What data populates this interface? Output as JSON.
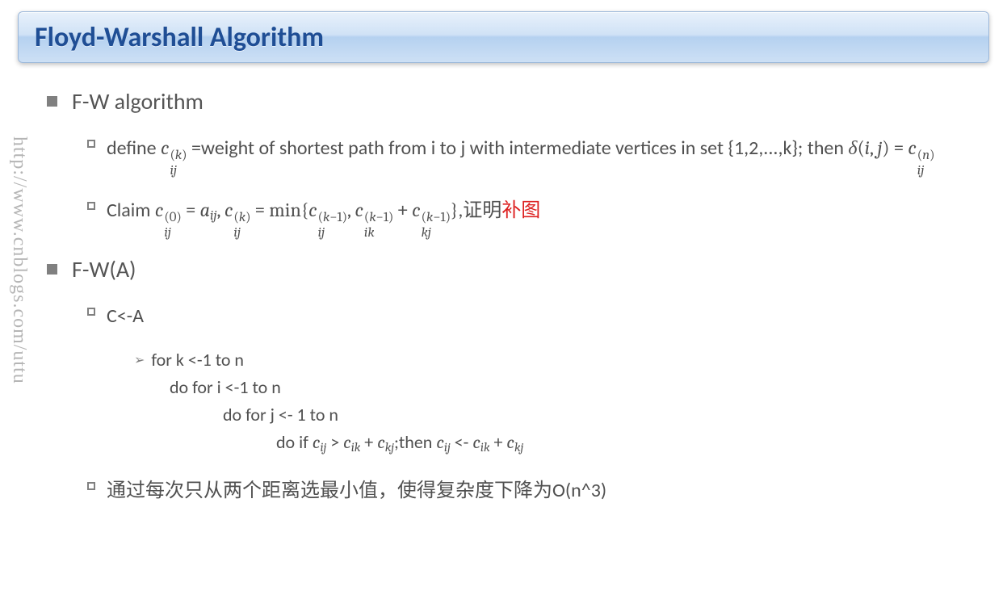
{
  "title": "Floyd-Warshall Algorithm",
  "watermark": "http://www.cnblogs.com/uttu",
  "section1": {
    "heading": "F-W algorithm",
    "bullets": {
      "define_prefix": "define ",
      "define_mid": "=weight of shortest path from i to j with intermediate vertices in set {1,2,...,k}; then ",
      "claim_prefix": "Claim ",
      "claim_tail_plain": ",证明",
      "claim_tail_red": "补图"
    }
  },
  "section2": {
    "heading": "F-W(A)",
    "sub1": "C<-A",
    "code": {
      "l1": "for k <-1 to n",
      "l2": "do for i <-1 to n",
      "l3": "do for j <- 1 to n",
      "l4_a": "do if ",
      "l4_b": ";then "
    },
    "sub2": "通过每次只从两个距离选最小值，使得复杂度下降为O(n^3)"
  },
  "colors": {
    "title_text": "#1f4e95",
    "body_text": "#505050",
    "bullet_gray": "#808080",
    "red": "#d22"
  },
  "fontsizes": {
    "title": 34,
    "l1": 28,
    "l2": 24,
    "l3": 22
  }
}
